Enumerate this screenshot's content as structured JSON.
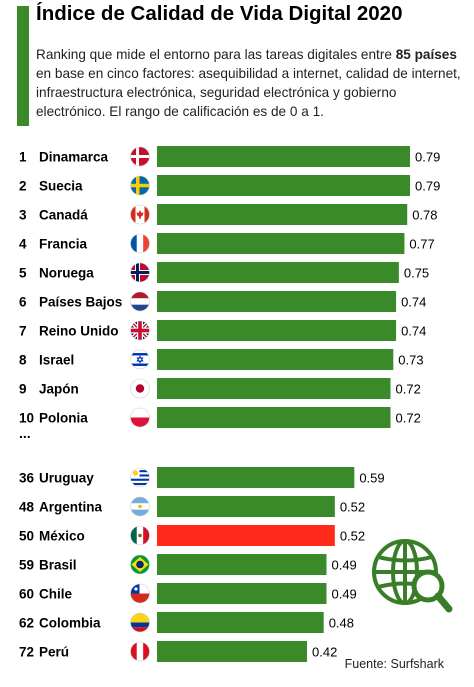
{
  "title": "Índice de Calidad de Vida Digital 2020",
  "subtitle": {
    "part1": "Ranking que mide el entorno para las tareas digitales entre ",
    "bold": "85 países",
    "part2": " en base en cinco factores: asequibilidad a internet, calidad de internet, infraestructura electrónica, seguridad electrónica y gobierno electrónico. El rango de calificación es de 0 a 1."
  },
  "ellipsis": "...",
  "source": "Fuente: Surfshark",
  "colors": {
    "bar": "#3a8a2a",
    "highlight": "#ff2a1a",
    "icon": "#3a7d28"
  },
  "icon": "globe-search-icon",
  "chart_data": {
    "type": "bar",
    "orientation": "horizontal",
    "ylim": [
      0,
      1
    ],
    "groups": [
      {
        "rows": [
          {
            "rank": "1",
            "country": "Dinamarca",
            "flag": "denmark",
            "value": 0.79,
            "label": "0.79"
          },
          {
            "rank": "2",
            "country": "Suecia",
            "flag": "sweden",
            "value": 0.79,
            "label": "0.79"
          },
          {
            "rank": "3",
            "country": "Canadá",
            "flag": "canada",
            "value": 0.78,
            "label": "0.78"
          },
          {
            "rank": "4",
            "country": "Francia",
            "flag": "france",
            "value": 0.77,
            "label": "0.77"
          },
          {
            "rank": "5",
            "country": "Noruega",
            "flag": "norway",
            "value": 0.75,
            "label": "0.75"
          },
          {
            "rank": "6",
            "country": "Países Bajos",
            "flag": "netherlands",
            "value": 0.74,
            "label": "0.74"
          },
          {
            "rank": "7",
            "country": "Reino Unido",
            "flag": "uk",
            "value": 0.74,
            "label": "0.74"
          },
          {
            "rank": "8",
            "country": "Israel",
            "flag": "israel",
            "value": 0.73,
            "label": "0.73"
          },
          {
            "rank": "9",
            "country": "Japón",
            "flag": "japan",
            "value": 0.72,
            "label": "0.72"
          },
          {
            "rank": "10",
            "country": "Polonia",
            "flag": "poland",
            "value": 0.72,
            "label": "0.72"
          }
        ]
      },
      {
        "rows": [
          {
            "rank": "36",
            "country": "Uruguay",
            "flag": "uruguay",
            "value": 0.59,
            "label": "0.59"
          },
          {
            "rank": "48",
            "country": "Argentina",
            "flag": "argentina",
            "value": 0.52,
            "label": "0.52"
          },
          {
            "rank": "50",
            "country": "México",
            "flag": "mexico",
            "value": 0.52,
            "label": "0.52",
            "highlight": true
          },
          {
            "rank": "59",
            "country": "Brasil",
            "flag": "brazil",
            "value": 0.49,
            "label": "0.49"
          },
          {
            "rank": "60",
            "country": "Chile",
            "flag": "chile",
            "value": 0.49,
            "label": "0.49"
          },
          {
            "rank": "62",
            "country": "Colombia",
            "flag": "colombia",
            "value": 0.48,
            "label": "0.48"
          },
          {
            "rank": "72",
            "country": "Perú",
            "flag": "peru",
            "value": 0.42,
            "label": "0.42"
          }
        ]
      }
    ]
  }
}
